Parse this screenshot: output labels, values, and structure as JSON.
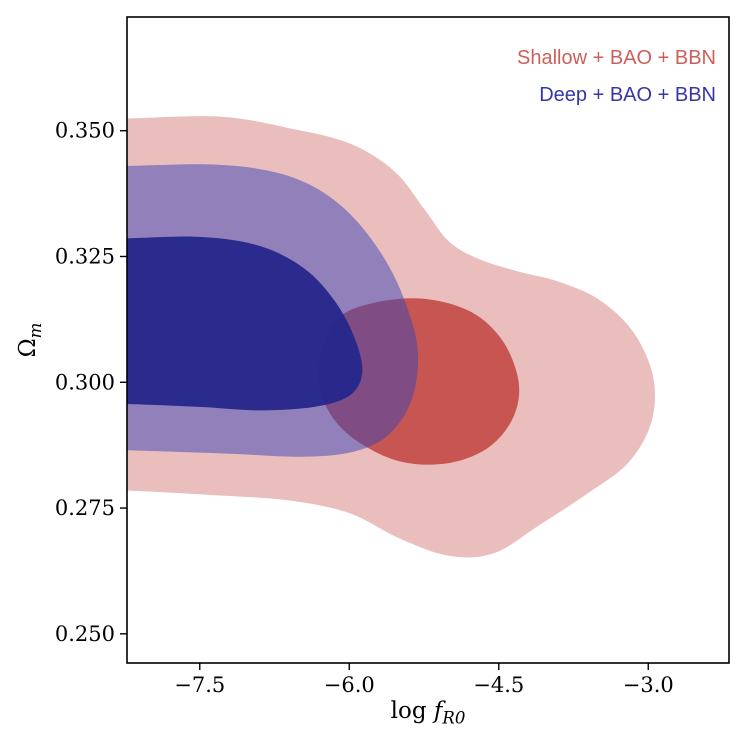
{
  "figure": {
    "legend": [
      {
        "label": "Shallow + BAO + BBN",
        "color": "#cd5f5b"
      },
      {
        "label": "Deep + BAO + BBN",
        "color": "#3636aa"
      }
    ],
    "xlabel": {
      "prefix": "log ",
      "var": "f",
      "sub": "R0"
    },
    "ylabel": {
      "var": "Ω",
      "sub": "m"
    }
  },
  "chart_data": {
    "type": "contour",
    "title": "",
    "xlabel": "log f_R0",
    "ylabel": "Ω_m",
    "xlim": [
      -8.23,
      -2.19
    ],
    "ylim": [
      0.2442,
      0.3726
    ],
    "xticks": [
      -7.5,
      -6.0,
      -4.5,
      -3.0
    ],
    "xtick_labels": [
      "−7.5",
      "−6.0",
      "−4.5",
      "−3.0"
    ],
    "yticks": [
      0.25,
      0.275,
      0.3,
      0.325,
      0.35
    ],
    "ytick_labels": [
      "0.250",
      "0.275",
      "0.300",
      "0.325",
      "0.350"
    ],
    "grid": false,
    "legend_position": "upper right",
    "frame_color": "#000000",
    "series": [
      {
        "name": "shallow-bao-bbn-95",
        "dataset": "Shallow + BAO + BBN",
        "level": "95%",
        "fill": "rgba(205,92,92,0.40)",
        "points": [
          [
            -8.25,
            0.3524
          ],
          [
            -7.3,
            0.3528
          ],
          [
            -6.6,
            0.3505
          ],
          [
            -6.0,
            0.3475
          ],
          [
            -5.55,
            0.342
          ],
          [
            -5.25,
            0.3345
          ],
          [
            -5.0,
            0.328
          ],
          [
            -4.7,
            0.3245
          ],
          [
            -4.3,
            0.322
          ],
          [
            -3.9,
            0.32
          ],
          [
            -3.5,
            0.3165
          ],
          [
            -3.15,
            0.31
          ],
          [
            -2.95,
            0.301
          ],
          [
            -2.97,
            0.292
          ],
          [
            -3.2,
            0.284
          ],
          [
            -3.6,
            0.278
          ],
          [
            -4.1,
            0.2715
          ],
          [
            -4.55,
            0.266
          ],
          [
            -5.0,
            0.2655
          ],
          [
            -5.5,
            0.269
          ],
          [
            -6.0,
            0.274
          ],
          [
            -6.6,
            0.2765
          ],
          [
            -7.3,
            0.2775
          ],
          [
            -8.25,
            0.2785
          ],
          [
            -8.8,
            0.2786
          ],
          [
            -8.8,
            0.3523
          ]
        ]
      },
      {
        "name": "shallow-bao-bbn-68",
        "dataset": "Shallow + BAO + BBN",
        "level": "68%",
        "fill": "rgba(197,80,77,0.95)",
        "points": [
          [
            -6.3,
            0.304
          ],
          [
            -6.12,
            0.3125
          ],
          [
            -5.75,
            0.3158
          ],
          [
            -5.25,
            0.3166
          ],
          [
            -4.78,
            0.314
          ],
          [
            -4.46,
            0.3082
          ],
          [
            -4.3,
            0.3
          ],
          [
            -4.36,
            0.2928
          ],
          [
            -4.62,
            0.2868
          ],
          [
            -5.05,
            0.2838
          ],
          [
            -5.55,
            0.2846
          ],
          [
            -6.02,
            0.2898
          ],
          [
            -6.26,
            0.2965
          ]
        ]
      },
      {
        "name": "deep-bao-bbn-95",
        "dataset": "Deep + BAO + BBN",
        "level": "95%",
        "fill": "rgba(58,66,182,0.50)",
        "points": [
          [
            -8.25,
            0.343
          ],
          [
            -7.4,
            0.3433
          ],
          [
            -6.8,
            0.342
          ],
          [
            -6.35,
            0.3388
          ],
          [
            -5.98,
            0.3332
          ],
          [
            -5.66,
            0.325
          ],
          [
            -5.44,
            0.316
          ],
          [
            -5.31,
            0.306
          ],
          [
            -5.38,
            0.2962
          ],
          [
            -5.62,
            0.2893
          ],
          [
            -5.98,
            0.2861
          ],
          [
            -6.5,
            0.2852
          ],
          [
            -7.2,
            0.2858
          ],
          [
            -8.25,
            0.2865
          ],
          [
            -8.8,
            0.2866
          ],
          [
            -8.8,
            0.3429
          ]
        ]
      },
      {
        "name": "deep-bao-bbn-68",
        "dataset": "Deep + BAO + BBN",
        "level": "68%",
        "fill": "rgba(40,41,139,0.98)",
        "points": [
          [
            -8.25,
            0.3286
          ],
          [
            -7.5,
            0.3289
          ],
          [
            -6.9,
            0.3271
          ],
          [
            -6.45,
            0.3226
          ],
          [
            -6.14,
            0.316
          ],
          [
            -5.94,
            0.3085
          ],
          [
            -5.87,
            0.3018
          ],
          [
            -6.0,
            0.2973
          ],
          [
            -6.35,
            0.2951
          ],
          [
            -6.9,
            0.2944
          ],
          [
            -7.5,
            0.2951
          ],
          [
            -8.25,
            0.2957
          ],
          [
            -8.8,
            0.2958
          ],
          [
            -8.8,
            0.3285
          ]
        ]
      }
    ]
  }
}
